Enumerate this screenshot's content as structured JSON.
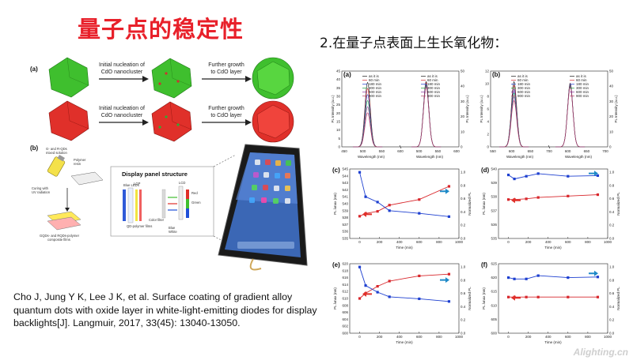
{
  "slide": {
    "title": "量子点的稳定性",
    "subtitle": "2.在量子点表面上生长氧化物：",
    "citation": "Cho J, Jung Y K, Lee J K, et al. Surface coating of gradient alloy quantum dots with oxide layer in white-light-emitting diodes for display backlights[J]. Langmuir, 2017, 33(45): 13040-13050.",
    "watermark": "Alighting.cn"
  },
  "figure_left": {
    "panel_a": "(a)",
    "panel_b": "(b)",
    "step1": [
      "Initial nucleation of",
      "CdO nanocluster"
    ],
    "step2": [
      "Further growth",
      "to CdO layer"
    ],
    "mix_label": [
      "G- and R-QDs",
      "mixed solution"
    ],
    "polymer_label": [
      "Polymer",
      "resin"
    ],
    "curing_label": [
      "Curing with",
      "UV radiation"
    ],
    "films_label": [
      "GQDs- and RQDs-polymer",
      "composite films"
    ],
    "display_title": "Display panel structure",
    "layer_labels": [
      "Blue LEDs",
      "LGP",
      "QD-polymer films",
      "Color filter",
      "LCD",
      "Blue",
      "White",
      "Red",
      "Green"
    ],
    "colors": {
      "green": "#3fbf2e",
      "red": "#e0302a",
      "blue": "#1f4fd8"
    }
  },
  "spectra": {
    "panel_a": "(a)",
    "panel_b": "(b)",
    "legend": [
      "as it is",
      "60 min",
      "180 min",
      "300 min",
      "600 min",
      "900 min"
    ],
    "legend_colors": [
      "#111111",
      "#d8262b",
      "#1d3fd0",
      "#1a9a3a",
      "#8b2e9c",
      "#b03a60"
    ],
    "xlabel": "Wavelength (nm)",
    "ylabel": "PL Intensity (a.u.)",
    "a_x_ticks": [
      "450",
      "500",
      "550",
      "600",
      "500",
      "550",
      "600"
    ],
    "b_x_ticks": [
      "550",
      "600",
      "650",
      "700",
      "600",
      "650",
      "700"
    ],
    "a_y_ticks": [
      "0",
      "5",
      "10",
      "15",
      "20",
      "25",
      "30",
      "35",
      "40",
      "45"
    ],
    "b_y_ticks": [
      "0",
      "2",
      "4",
      "6",
      "8",
      "10",
      "12"
    ],
    "a_y2_ticks": [
      "0",
      "10",
      "20",
      "30",
      "40",
      "50"
    ],
    "b_y2_ticks": [
      "0",
      "10",
      "20",
      "30",
      "40",
      "50"
    ]
  },
  "chart_data": [
    {
      "panel": "(c)",
      "type": "scatter",
      "xlabel": "Time (min)",
      "ylabel": "PL λmax (nm)",
      "y2label": "Normalized PL",
      "x_ticks": [
        "0",
        "200",
        "400",
        "600",
        "800",
        "1000"
      ],
      "y_ticks": [
        "535",
        "536",
        "537",
        "538",
        "539",
        "540",
        "541",
        "542",
        "543",
        "544",
        "545"
      ],
      "y2_ticks": [
        "0.0",
        "0.2",
        "0.4",
        "0.6",
        "0.8",
        "1.0"
      ],
      "ylim": [
        535,
        545
      ],
      "y2lim": [
        0,
        1.05
      ],
      "xlim": [
        -100,
        1000
      ],
      "series": [
        {
          "axis": "left",
          "color": "#d8262b",
          "x": [
            0,
            60,
            180,
            300,
            600,
            900
          ],
          "y": [
            538.2,
            538.6,
            538.9,
            539.8,
            540.6,
            542.5
          ]
        },
        {
          "axis": "right",
          "color": "#1d3fd0",
          "x": [
            0,
            60,
            180,
            300,
            600,
            900
          ],
          "y": [
            1.0,
            0.63,
            0.55,
            0.42,
            0.38,
            0.33
          ]
        }
      ]
    },
    {
      "panel": "(d)",
      "type": "scatter",
      "xlabel": "Time (min)",
      "ylabel": "PL λmax (nm)",
      "y2label": "Normalized PL",
      "x_ticks": [
        "0",
        "200",
        "400",
        "600",
        "800",
        "1000"
      ],
      "y_ticks": [
        "535",
        "536",
        "537",
        "538",
        "539",
        "540"
      ],
      "y2_ticks": [
        "0.0",
        "0.2",
        "0.4",
        "0.6",
        "0.8",
        "1.0"
      ],
      "ylim": [
        535,
        540
      ],
      "y2lim": [
        0,
        1.05
      ],
      "xlim": [
        -100,
        1000
      ],
      "series": [
        {
          "axis": "left",
          "color": "#d8262b",
          "x": [
            0,
            60,
            180,
            300,
            600,
            900
          ],
          "y": [
            537.8,
            537.8,
            537.85,
            537.95,
            538.05,
            538.15
          ]
        },
        {
          "axis": "right",
          "color": "#1d3fd0",
          "x": [
            0,
            60,
            180,
            300,
            600,
            900
          ],
          "y": [
            0.96,
            0.9,
            0.94,
            0.98,
            0.94,
            0.95
          ]
        }
      ]
    },
    {
      "panel": "(e)",
      "type": "scatter",
      "xlabel": "Time (min)",
      "ylabel": "PL λmax (nm)",
      "y2label": "Normalized PL",
      "x_ticks": [
        "0",
        "200",
        "400",
        "600",
        "800",
        "1000"
      ],
      "y_ticks": [
        "600",
        "602",
        "604",
        "606",
        "608",
        "610",
        "612",
        "614",
        "616",
        "618",
        "620"
      ],
      "y2_ticks": [
        "0.0",
        "0.2",
        "0.4",
        "0.6",
        "0.8",
        "1.0"
      ],
      "ylim": [
        600,
        620
      ],
      "y2lim": [
        0,
        1.05
      ],
      "xlim": [
        -100,
        1000
      ],
      "series": [
        {
          "axis": "left",
          "color": "#d8262b",
          "x": [
            0,
            60,
            180,
            300,
            600,
            900
          ],
          "y": [
            610,
            611.5,
            613.5,
            615,
            616.5,
            617
          ]
        },
        {
          "axis": "right",
          "color": "#1d3fd0",
          "x": [
            0,
            60,
            180,
            300,
            600,
            900
          ],
          "y": [
            1.0,
            0.72,
            0.62,
            0.55,
            0.52,
            0.48
          ]
        }
      ]
    },
    {
      "panel": "(f)",
      "type": "scatter",
      "xlabel": "Time (min)",
      "ylabel": "PL λmax (nm)",
      "y2label": "Normalized PL",
      "x_ticks": [
        "0",
        "200",
        "400",
        "600",
        "800",
        "1000"
      ],
      "y_ticks": [
        "600",
        "605",
        "610",
        "615",
        "620",
        "625"
      ],
      "y2_ticks": [
        "0.0",
        "0.2",
        "0.4",
        "0.6",
        "0.8",
        "1.0"
      ],
      "ylim": [
        600,
        625
      ],
      "y2lim": [
        0,
        1.05
      ],
      "xlim": [
        -100,
        1000
      ],
      "series": [
        {
          "axis": "left",
          "color": "#d8262b",
          "x": [
            0,
            60,
            180,
            300,
            600,
            900
          ],
          "y": [
            613,
            613,
            613,
            613,
            613,
            613
          ]
        },
        {
          "axis": "right",
          "color": "#1d3fd0",
          "x": [
            0,
            60,
            180,
            300,
            600,
            900
          ],
          "y": [
            0.84,
            0.82,
            0.82,
            0.87,
            0.84,
            0.85
          ]
        }
      ]
    }
  ]
}
